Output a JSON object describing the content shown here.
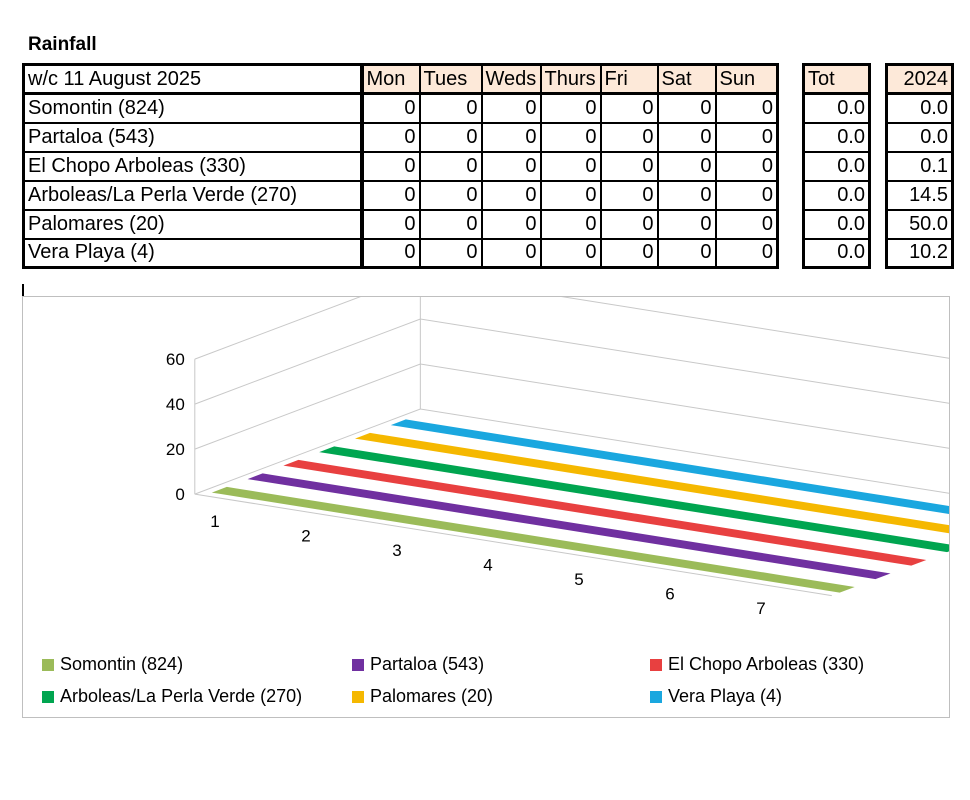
{
  "title": "Rainfall",
  "table": {
    "week_label": "w/c 11 August  2025",
    "days": [
      "Mon",
      "Tues",
      "Weds",
      "Thurs",
      "Fri",
      "Sat",
      "Sun"
    ],
    "tot_label": "Tot",
    "year_label": "2024",
    "rows": [
      {
        "name": "Somontin (824)",
        "days": [
          "0",
          "0",
          "0",
          "0",
          "0",
          "0",
          "0"
        ],
        "tot": "0.0",
        "year": "0.0"
      },
      {
        "name": "Partaloa (543)",
        "days": [
          "0",
          "0",
          "0",
          "0",
          "0",
          "0",
          "0"
        ],
        "tot": "0.0",
        "year": "0.0"
      },
      {
        "name": "El Chopo Arboleas (330)",
        "days": [
          "0",
          "0",
          "0",
          "0",
          "0",
          "0",
          "0"
        ],
        "tot": "0.0",
        "year": "0.1"
      },
      {
        "name": "Arboleas/La Perla Verde (270)",
        "days": [
          "0",
          "0",
          "0",
          "0",
          "0",
          "0",
          "0"
        ],
        "tot": "0.0",
        "year": "14.5"
      },
      {
        "name": "Palomares (20)",
        "days": [
          "0",
          "0",
          "0",
          "0",
          "0",
          "0",
          "0"
        ],
        "tot": "0.0",
        "year": "50.0"
      },
      {
        "name": "Vera Playa (4)",
        "days": [
          "0",
          "0",
          "0",
          "0",
          "0",
          "0",
          "0"
        ],
        "tot": "0.0",
        "year": "10.2"
      }
    ]
  },
  "chart_data": {
    "type": "line",
    "subtype": "3d-ribbon",
    "categories": [
      "1",
      "2",
      "3",
      "4",
      "5",
      "6",
      "7"
    ],
    "series": [
      {
        "name": "Somontin (824)",
        "values": [
          0,
          0,
          0,
          0,
          0,
          0,
          0
        ],
        "color": "#9bbb59"
      },
      {
        "name": "Partaloa (543)",
        "values": [
          0,
          0,
          0,
          0,
          0,
          0,
          0
        ],
        "color": "#7030a0"
      },
      {
        "name": "El Chopo Arboleas (330)",
        "values": [
          0,
          0,
          0,
          0,
          0,
          0,
          0
        ],
        "color": "#e84040"
      },
      {
        "name": "Arboleas/La Perla Verde (270)",
        "values": [
          0,
          0,
          0,
          0,
          0,
          0,
          0
        ],
        "color": "#00a550"
      },
      {
        "name": "Palomares (20)",
        "values": [
          0,
          0,
          0,
          0,
          0,
          0,
          0
        ],
        "color": "#f5b800"
      },
      {
        "name": "Vera Playa (4)",
        "values": [
          0,
          0,
          0,
          0,
          0,
          0,
          0
        ],
        "color": "#1aa7df"
      }
    ],
    "y_ticks": [
      "0",
      "20",
      "40",
      "60"
    ],
    "ylim": [
      0,
      60
    ],
    "grid": true,
    "legend_position": "bottom"
  }
}
